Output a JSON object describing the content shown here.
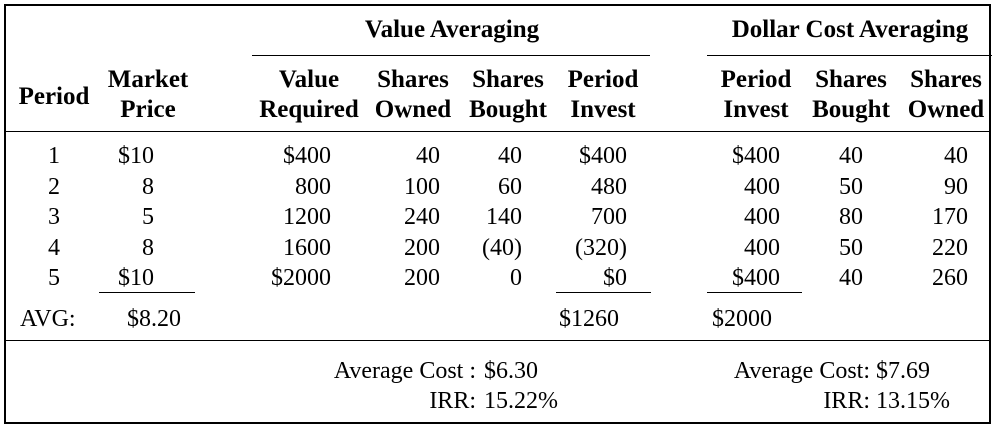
{
  "groups": {
    "value_averaging": "Value Averaging",
    "dollar_cost_averaging": "Dollar Cost Averaging"
  },
  "headers": {
    "period": "Period",
    "market_price": [
      "Market",
      "Price"
    ],
    "va_value_required": [
      "Value",
      "Required"
    ],
    "va_shares_owned": [
      "Shares",
      "Owned"
    ],
    "va_shares_bought": [
      "Shares",
      "Bought"
    ],
    "va_period_invest": [
      "Period",
      "Invest"
    ],
    "dca_period_invest": [
      "Period",
      "Invest"
    ],
    "dca_shares_bought": [
      "Shares",
      "Bought"
    ],
    "dca_shares_owned": [
      "Shares",
      "Owned"
    ]
  },
  "rows": [
    {
      "period": "1",
      "price": "$10",
      "value_required": "$400",
      "va_owned": "40",
      "va_bought": "40",
      "va_invest": "$400",
      "dca_invest": "$400",
      "dca_bought": "40",
      "dca_owned": "40"
    },
    {
      "period": "2",
      "price": "8",
      "value_required": "800",
      "va_owned": "100",
      "va_bought": "60",
      "va_invest": "480",
      "dca_invest": "400",
      "dca_bought": "50",
      "dca_owned": "90"
    },
    {
      "period": "3",
      "price": "5",
      "value_required": "1200",
      "va_owned": "240",
      "va_bought": "140",
      "va_invest": "700",
      "dca_invest": "400",
      "dca_bought": "80",
      "dca_owned": "170"
    },
    {
      "period": "4",
      "price": "8",
      "value_required": "1600",
      "va_owned": "200",
      "va_bought": "(40)",
      "va_invest": "(320)",
      "dca_invest": "400",
      "dca_bought": "50",
      "dca_owned": "220"
    },
    {
      "period": "5",
      "price": "$10",
      "value_required": "$2000",
      "va_owned": "200",
      "va_bought": "0",
      "va_invest": "$0",
      "dca_invest": "$400",
      "dca_bought": "40",
      "dca_owned": "260"
    }
  ],
  "totals": {
    "avg_label": "AVG:",
    "avg_price": "$8.20",
    "va_invest_total": "$1260",
    "dca_invest_total": "$2000"
  },
  "summary": {
    "va": {
      "avg_cost_label": "Average Cost :",
      "avg_cost": "$6.30",
      "irr_label": "IRR:",
      "irr": "15.22%"
    },
    "dca": {
      "avg_cost_label": "Average Cost:",
      "avg_cost": "$7.69",
      "irr_label": "IRR:",
      "irr": "13.15%"
    }
  }
}
